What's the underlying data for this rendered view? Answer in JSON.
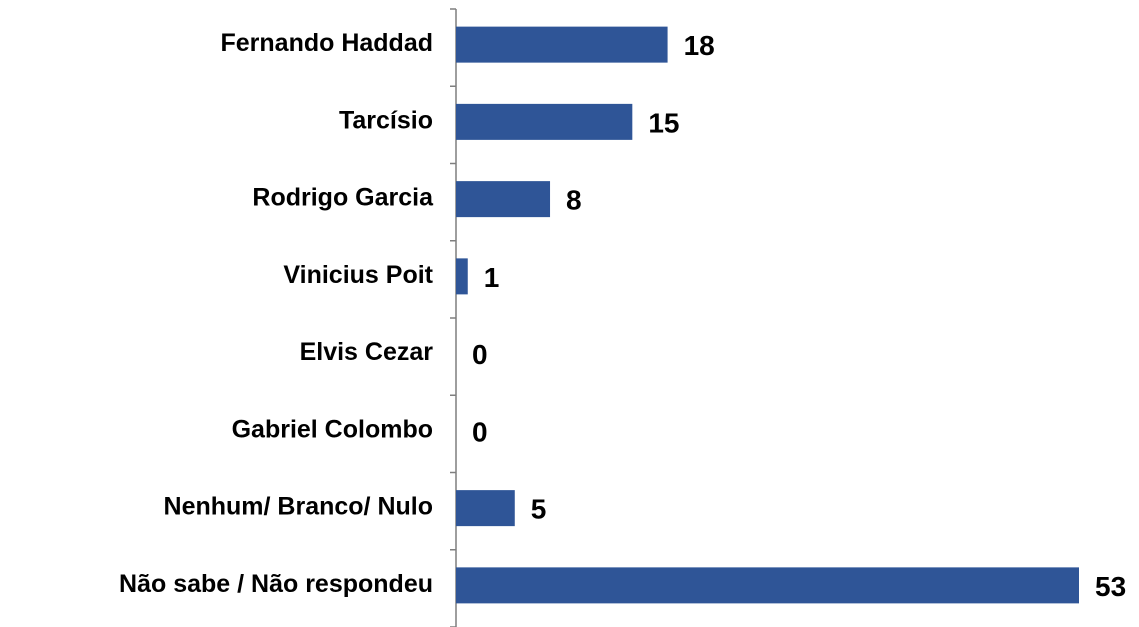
{
  "chart_data": {
    "type": "barh",
    "categories": [
      "Fernando Haddad",
      "Tarcísio",
      "Rodrigo Garcia",
      "Vinicius Poit",
      "Elvis Cezar",
      "Gabriel Colombo",
      "Nenhum/ Branco/ Nulo",
      "Não sabe / Não respondeu"
    ],
    "values": [
      18,
      15,
      8,
      1,
      0,
      0,
      5,
      53
    ],
    "color": "#2f5597"
  }
}
